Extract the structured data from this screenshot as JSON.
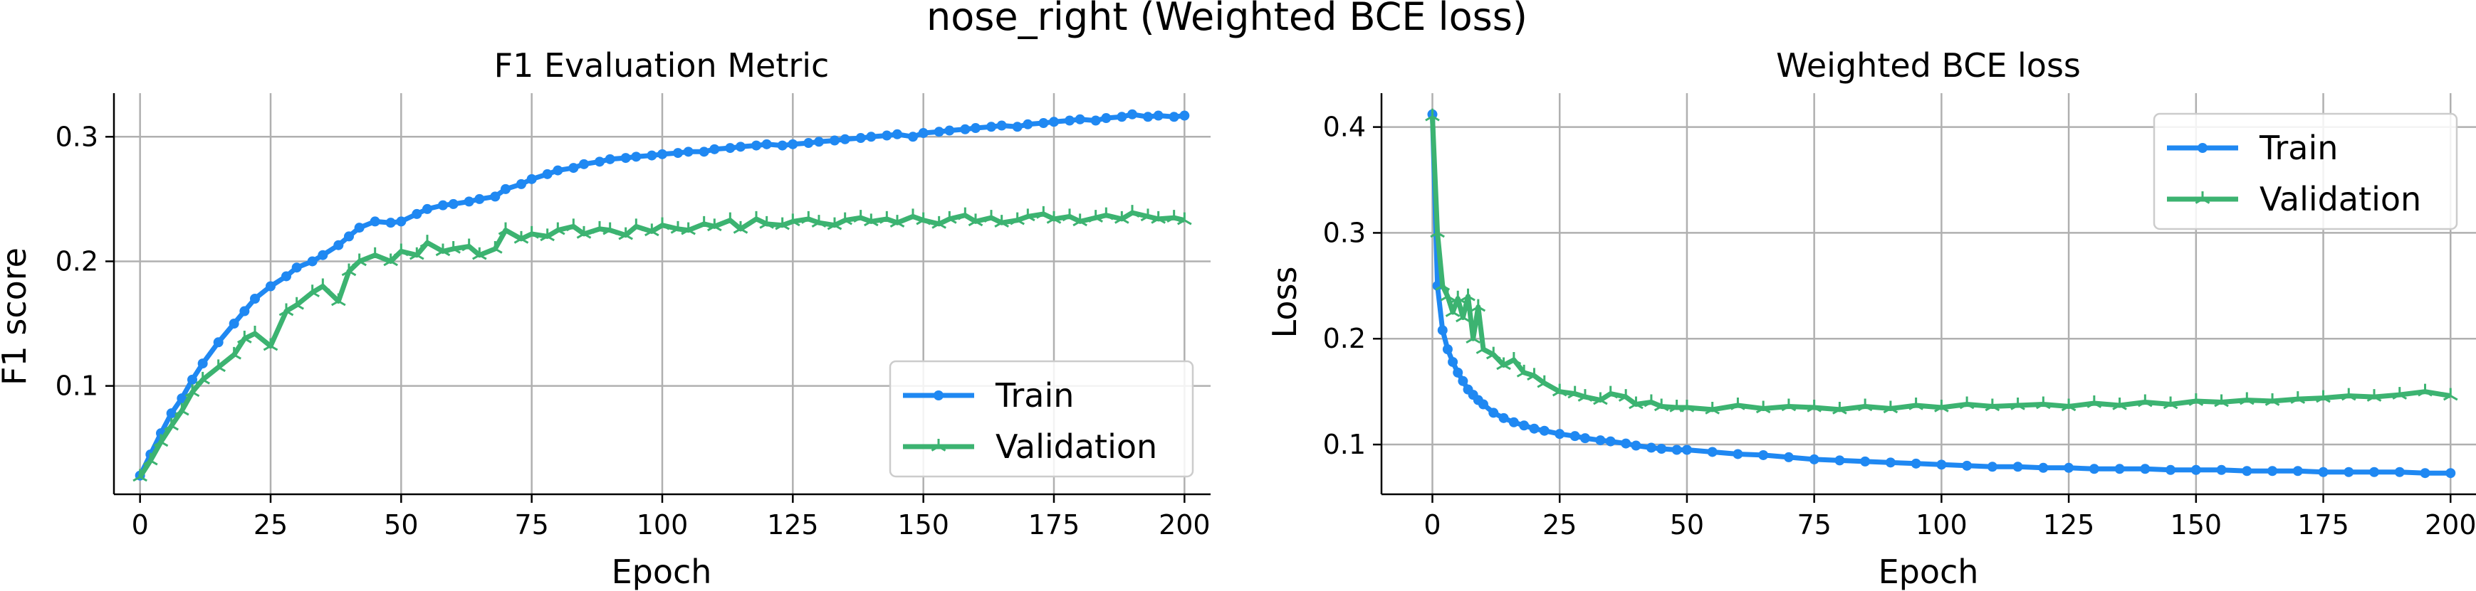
{
  "figure": {
    "suptitle": "nose_right (Weighted BCE loss)"
  },
  "colors": {
    "train": "#1f88f2",
    "validation": "#3cb371",
    "grid": "#b0b0b0"
  },
  "chart_data": [
    {
      "type": "line",
      "title": "F1 Evaluation Metric",
      "xlabel": "Epoch",
      "ylabel": "F1 score",
      "xlim": [
        -5,
        205
      ],
      "ylim": [
        0.013,
        0.335
      ],
      "xticks": [
        0,
        25,
        50,
        75,
        100,
        125,
        150,
        175,
        200
      ],
      "yticks": [
        0.1,
        0.2,
        0.3
      ],
      "grid": true,
      "legend": "lower-right",
      "series": [
        {
          "name": "Train",
          "marker": "circle",
          "x": [
            0,
            2,
            4,
            6,
            8,
            10,
            12,
            15,
            18,
            20,
            22,
            25,
            28,
            30,
            33,
            35,
            38,
            40,
            42,
            45,
            48,
            50,
            53,
            55,
            58,
            60,
            63,
            65,
            68,
            70,
            73,
            75,
            78,
            80,
            83,
            85,
            88,
            90,
            93,
            95,
            98,
            100,
            103,
            105,
            108,
            110,
            113,
            115,
            118,
            120,
            123,
            125,
            128,
            130,
            133,
            135,
            138,
            140,
            143,
            145,
            148,
            150,
            153,
            155,
            158,
            160,
            163,
            165,
            168,
            170,
            173,
            175,
            178,
            180,
            183,
            185,
            188,
            190,
            193,
            195,
            198,
            200
          ],
          "values": [
            0.028,
            0.045,
            0.062,
            0.078,
            0.09,
            0.105,
            0.118,
            0.135,
            0.15,
            0.16,
            0.17,
            0.18,
            0.188,
            0.195,
            0.2,
            0.205,
            0.213,
            0.22,
            0.227,
            0.232,
            0.231,
            0.232,
            0.238,
            0.242,
            0.245,
            0.246,
            0.248,
            0.25,
            0.252,
            0.258,
            0.262,
            0.266,
            0.27,
            0.273,
            0.275,
            0.278,
            0.28,
            0.282,
            0.283,
            0.284,
            0.285,
            0.286,
            0.287,
            0.288,
            0.288,
            0.29,
            0.291,
            0.292,
            0.293,
            0.294,
            0.293,
            0.294,
            0.295,
            0.296,
            0.297,
            0.298,
            0.299,
            0.3,
            0.301,
            0.302,
            0.3,
            0.303,
            0.304,
            0.305,
            0.306,
            0.307,
            0.308,
            0.309,
            0.308,
            0.31,
            0.311,
            0.312,
            0.313,
            0.314,
            0.313,
            0.315,
            0.316,
            0.318,
            0.316,
            0.317,
            0.316,
            0.317
          ]
        },
        {
          "name": "Validation",
          "marker": "tri",
          "x": [
            0,
            2,
            4,
            6,
            8,
            10,
            12,
            15,
            18,
            20,
            22,
            25,
            28,
            30,
            33,
            35,
            38,
            40,
            42,
            45,
            48,
            50,
            53,
            55,
            58,
            60,
            63,
            65,
            68,
            70,
            73,
            75,
            78,
            80,
            83,
            85,
            88,
            90,
            93,
            95,
            98,
            100,
            103,
            105,
            108,
            110,
            113,
            115,
            118,
            120,
            123,
            125,
            128,
            130,
            133,
            135,
            138,
            140,
            143,
            145,
            148,
            150,
            153,
            155,
            158,
            160,
            163,
            165,
            168,
            170,
            173,
            175,
            178,
            180,
            183,
            185,
            188,
            190,
            193,
            195,
            198,
            200
          ],
          "values": [
            0.027,
            0.04,
            0.055,
            0.068,
            0.08,
            0.095,
            0.105,
            0.115,
            0.125,
            0.138,
            0.142,
            0.132,
            0.16,
            0.165,
            0.175,
            0.18,
            0.168,
            0.192,
            0.2,
            0.205,
            0.2,
            0.208,
            0.205,
            0.215,
            0.208,
            0.21,
            0.212,
            0.205,
            0.21,
            0.225,
            0.218,
            0.222,
            0.22,
            0.225,
            0.228,
            0.222,
            0.226,
            0.225,
            0.221,
            0.228,
            0.224,
            0.229,
            0.226,
            0.225,
            0.23,
            0.228,
            0.233,
            0.226,
            0.234,
            0.23,
            0.229,
            0.232,
            0.234,
            0.231,
            0.229,
            0.233,
            0.235,
            0.232,
            0.234,
            0.231,
            0.236,
            0.233,
            0.23,
            0.234,
            0.237,
            0.232,
            0.235,
            0.231,
            0.233,
            0.236,
            0.238,
            0.234,
            0.236,
            0.232,
            0.235,
            0.237,
            0.234,
            0.239,
            0.236,
            0.234,
            0.235,
            0.233
          ]
        }
      ]
    },
    {
      "type": "line",
      "title": "Weighted BCE loss",
      "xlabel": "Epoch",
      "ylabel": "Loss",
      "xlim": [
        -10,
        205
      ],
      "ylim": [
        0.053,
        0.432
      ],
      "xticks": [
        0,
        25,
        50,
        75,
        100,
        125,
        150,
        175,
        200
      ],
      "yticks": [
        0.1,
        0.2,
        0.3,
        0.4
      ],
      "grid": true,
      "legend": "top-right",
      "series": [
        {
          "name": "Train",
          "marker": "circle",
          "x": [
            0,
            1,
            2,
            3,
            4,
            5,
            6,
            7,
            8,
            9,
            10,
            12,
            14,
            16,
            18,
            20,
            22,
            25,
            28,
            30,
            33,
            35,
            38,
            40,
            43,
            45,
            48,
            50,
            55,
            60,
            65,
            70,
            75,
            80,
            85,
            90,
            95,
            100,
            105,
            110,
            115,
            120,
            125,
            130,
            135,
            140,
            145,
            150,
            155,
            160,
            165,
            170,
            175,
            180,
            185,
            190,
            195,
            200
          ],
          "values": [
            0.412,
            0.25,
            0.208,
            0.19,
            0.178,
            0.168,
            0.16,
            0.152,
            0.147,
            0.142,
            0.138,
            0.13,
            0.125,
            0.121,
            0.118,
            0.115,
            0.113,
            0.11,
            0.108,
            0.106,
            0.104,
            0.103,
            0.101,
            0.099,
            0.097,
            0.096,
            0.095,
            0.095,
            0.093,
            0.091,
            0.09,
            0.088,
            0.086,
            0.085,
            0.084,
            0.083,
            0.082,
            0.081,
            0.08,
            0.079,
            0.079,
            0.078,
            0.078,
            0.077,
            0.077,
            0.077,
            0.076,
            0.076,
            0.076,
            0.075,
            0.075,
            0.075,
            0.074,
            0.074,
            0.074,
            0.074,
            0.073,
            0.073
          ]
        },
        {
          "name": "Validation",
          "marker": "tri",
          "x": [
            0,
            1,
            2,
            3,
            4,
            5,
            6,
            7,
            8,
            9,
            10,
            12,
            14,
            16,
            18,
            20,
            22,
            25,
            28,
            30,
            33,
            35,
            38,
            40,
            43,
            45,
            48,
            50,
            55,
            60,
            65,
            70,
            75,
            80,
            85,
            90,
            95,
            100,
            105,
            110,
            115,
            120,
            125,
            130,
            135,
            140,
            145,
            150,
            155,
            160,
            165,
            170,
            175,
            180,
            185,
            190,
            195,
            200
          ],
          "values": [
            0.41,
            0.3,
            0.25,
            0.24,
            0.225,
            0.238,
            0.22,
            0.24,
            0.2,
            0.23,
            0.19,
            0.185,
            0.175,
            0.18,
            0.168,
            0.165,
            0.158,
            0.15,
            0.148,
            0.145,
            0.142,
            0.148,
            0.145,
            0.138,
            0.14,
            0.136,
            0.135,
            0.135,
            0.133,
            0.137,
            0.134,
            0.136,
            0.135,
            0.133,
            0.136,
            0.134,
            0.137,
            0.135,
            0.138,
            0.136,
            0.137,
            0.138,
            0.136,
            0.139,
            0.137,
            0.14,
            0.138,
            0.141,
            0.14,
            0.142,
            0.141,
            0.143,
            0.144,
            0.146,
            0.145,
            0.147,
            0.15,
            0.146
          ]
        }
      ]
    }
  ]
}
